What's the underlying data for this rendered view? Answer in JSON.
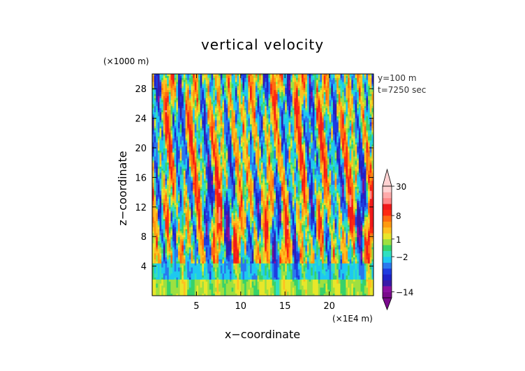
{
  "chart_data": {
    "type": "heatmap",
    "title": "vertical velocity",
    "xlabel": "x−coordinate",
    "ylabel": "z−coordinate",
    "x_unit": "(×1E4 m)",
    "y_unit": "(×1000 m)",
    "xlim": [
      0,
      25
    ],
    "ylim": [
      0,
      30
    ],
    "x_ticks": [
      5,
      10,
      15,
      20
    ],
    "y_ticks": [
      4,
      8,
      12,
      16,
      20,
      24,
      28
    ],
    "x_tick_labels": [
      "5",
      "10",
      "15",
      "20"
    ],
    "y_tick_labels": [
      "4",
      "8",
      "12",
      "16",
      "20",
      "24",
      "28"
    ],
    "annotations": [
      "y=100 m",
      "t=7250 sec"
    ],
    "colorbar": {
      "levels": [
        -16,
        -14,
        -12,
        -10,
        -8,
        -6,
        -4,
        -2,
        -1,
        0,
        1,
        2,
        4,
        6,
        8,
        10,
        15,
        20,
        25,
        30
      ],
      "colors": [
        "#7a0a8c",
        "#8a10a0",
        "#3a1aa8",
        "#1e22c8",
        "#1e3ce0",
        "#2a78ee",
        "#1ec8f0",
        "#30e0c0",
        "#38d26a",
        "#9ee040",
        "#e8e62a",
        "#ffc020",
        "#ff9a10",
        "#ff6a10",
        "#ff2a10",
        "#f01a1a",
        "#ff8888",
        "#ffaaaa",
        "#ffd2d2"
      ],
      "tick_labels": [
        {
          "value": 30,
          "text": "30"
        },
        {
          "value": 8,
          "text": "8"
        },
        {
          "value": 1,
          "text": "1"
        },
        {
          "value": -2,
          "text": "−2"
        },
        {
          "value": -14,
          "text": "−14"
        }
      ]
    },
    "field_description_values": {
      "velocity_min": -16,
      "velocity_max": 30
    }
  }
}
